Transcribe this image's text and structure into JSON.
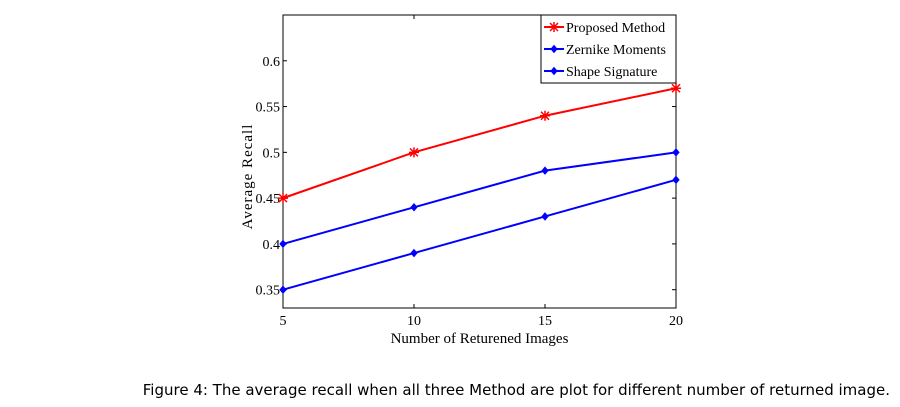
{
  "chart_data": {
    "type": "line",
    "title": "",
    "xlabel": "Number of Returened Images",
    "ylabel": "Average Recall",
    "x": [
      5,
      10,
      15,
      20
    ],
    "xlim": [
      5,
      20
    ],
    "ylim": [
      0.33,
      0.65
    ],
    "xticks": [
      "5",
      "10",
      "15",
      "20"
    ],
    "yticks": [
      "0.35",
      "0.4",
      "0.45",
      "0.5",
      "0.55",
      "0.6"
    ],
    "ytick_values": [
      0.35,
      0.4,
      0.45,
      0.5,
      0.55,
      0.6
    ],
    "grid": false,
    "legend_position": "top-right",
    "series": [
      {
        "name": "Proposed Method",
        "values": [
          0.45,
          0.5,
          0.54,
          0.57
        ],
        "color": "#ff0000",
        "marker": "star"
      },
      {
        "name": "Zernike Moments",
        "values": [
          0.4,
          0.44,
          0.48,
          0.5
        ],
        "color": "#0000ff",
        "marker": "diamond"
      },
      {
        "name": "Shape Signature",
        "values": [
          0.35,
          0.39,
          0.43,
          0.47
        ],
        "color": "#0000ff",
        "marker": "diamond"
      }
    ]
  },
  "caption": "Figure 4: The average recall when all three Method are plot for different number of returned image."
}
